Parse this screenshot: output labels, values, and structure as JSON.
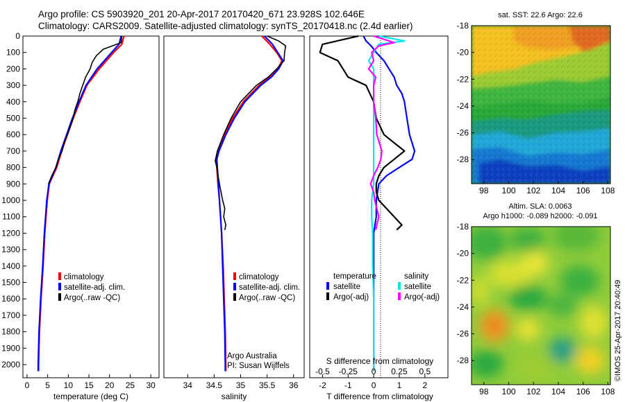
{
  "header": {
    "line1": "Argo profile: CS 5903920_201 20-Apr-2017 20170420_671 23.928S 102.646E",
    "line2": "Climatology: CARS2009. Satellite-adjusted climatology: synTS_20170418.nc (2.4d earlier)"
  },
  "colors": {
    "climatology": "#ff0000",
    "satellite": "#0000ff",
    "argo": "#000000",
    "sal_satellite": "#00e5ee",
    "sal_argo": "#ff00ff"
  },
  "chart_data": [
    {
      "type": "line",
      "id": "temperature",
      "xlabel": "temperature (deg C)",
      "xlim": [
        -1,
        32
      ],
      "ylim": [
        2080,
        0
      ],
      "xticks": [
        "0",
        "5",
        "10",
        "15",
        "20",
        "25",
        "30"
      ],
      "yticks": [
        "0",
        "100",
        "200",
        "300",
        "400",
        "500",
        "600",
        "700",
        "800",
        "900",
        "1000",
        "1100",
        "1200",
        "1300",
        "1400",
        "1500",
        "1600",
        "1700",
        "1800",
        "1900",
        "2000"
      ],
      "legend": [
        "climatology",
        "satellite-adj. clim.",
        "Argo(..raw -QC)"
      ],
      "series": [
        {
          "name": "climatology",
          "y": [
            0,
            50,
            100,
            200,
            300,
            400,
            500,
            600,
            700,
            800,
            900,
            1000,
            1200,
            1400,
            1600,
            1800,
            2000,
            2040
          ],
          "x": [
            23.5,
            23,
            21,
            17.5,
            14.5,
            12.8,
            11.2,
            9.8,
            8.4,
            7.2,
            5.4,
            4.9,
            4.3,
            3.9,
            3.4,
            3.0,
            2.8,
            2.8
          ]
        },
        {
          "name": "satellite-adj. clim.",
          "y": [
            0,
            50,
            100,
            200,
            300,
            400,
            500,
            600,
            700,
            800,
            900,
            1000,
            1200,
            1400,
            1600,
            1800,
            2000,
            2040
          ],
          "x": [
            22.8,
            22.3,
            20.5,
            17,
            14.3,
            12.6,
            11.0,
            9.6,
            8.2,
            7.0,
            5.3,
            4.8,
            4.2,
            3.8,
            3.3,
            2.9,
            2.7,
            2.7
          ]
        },
        {
          "name": "Argo(..raw -QC)",
          "y": [
            0,
            40,
            80,
            120,
            160,
            200,
            250,
            300,
            350,
            400,
            450,
            500,
            550,
            600,
            650,
            700,
            750,
            800,
            850,
            900
          ],
          "x": [
            23.0,
            22.8,
            18.5,
            16.8,
            15.8,
            15.3,
            14.2,
            13.5,
            12.8,
            12.3,
            11.6,
            11.2,
            10.5,
            9.8,
            9.0,
            8.5,
            7.6,
            7.0,
            6.0,
            5.2
          ]
        }
      ]
    },
    {
      "type": "line",
      "id": "salinity",
      "xlabel": "salinity",
      "xlim": [
        33.55,
        36.2
      ],
      "ylim": [
        2080,
        0
      ],
      "xticks": [
        "34",
        "34.5",
        "35",
        "35.5",
        "36"
      ],
      "legend": [
        "climatology",
        "satellite-adj. clim.",
        "Argo(..raw -QC)"
      ],
      "annotation": [
        "Argo Australia",
        "PI: Susan Wijffels"
      ],
      "series": [
        {
          "name": "climatology",
          "y": [
            0,
            50,
            100,
            150,
            200,
            250,
            300,
            400,
            500,
            600,
            700,
            750,
            800,
            900,
            1000,
            1100,
            1200,
            1400,
            1600,
            1800,
            2000,
            2040
          ],
          "x": [
            35.4,
            35.55,
            35.68,
            35.78,
            35.7,
            35.55,
            35.35,
            35.05,
            34.85,
            34.7,
            34.58,
            34.54,
            34.55,
            34.57,
            34.6,
            34.62,
            34.64,
            34.67,
            34.69,
            34.71,
            34.72,
            34.72
          ]
        },
        {
          "name": "satellite-adj. clim.",
          "y": [
            0,
            50,
            100,
            150,
            200,
            250,
            300,
            400,
            500,
            600,
            700,
            750,
            800,
            900,
            1000,
            1100,
            1200,
            1400,
            1600,
            1800,
            2000,
            2040
          ],
          "x": [
            35.45,
            35.6,
            35.7,
            35.8,
            35.72,
            35.58,
            35.38,
            35.08,
            34.88,
            34.72,
            34.59,
            34.55,
            34.56,
            34.58,
            34.6,
            34.62,
            34.64,
            34.66,
            34.68,
            34.7,
            34.71,
            34.71
          ]
        },
        {
          "name": "Argo(..raw -QC)",
          "y": [
            0,
            30,
            60,
            100,
            150,
            200,
            250,
            300,
            400,
            500,
            600,
            700,
            760,
            800,
            900,
            1000,
            1050,
            1100,
            1150,
            1180
          ],
          "x": [
            35.5,
            35.72,
            35.85,
            35.83,
            35.82,
            35.68,
            35.52,
            35.3,
            35.0,
            34.82,
            34.68,
            34.56,
            34.52,
            34.55,
            34.6,
            34.66,
            34.7,
            34.68,
            34.72,
            34.7
          ]
        }
      ]
    },
    {
      "type": "line",
      "id": "differences",
      "xlabel": "T difference from climatology",
      "xlabel_top": "S difference from climatology",
      "xlim": [
        -2.5,
        2.9
      ],
      "ylim": [
        2080,
        0
      ],
      "xticks": [
        "-2",
        "-1",
        "0",
        "1",
        "2"
      ],
      "xticks_top": [
        "-0.5",
        "-0.25",
        "0",
        "0.25",
        "0.5"
      ],
      "legend_left_title": "temperature",
      "legend_right_title": "salinity",
      "legend": [
        "satellite",
        "Argo(-adj)",
        "satellite",
        "Argo(-adj)"
      ],
      "series": [
        {
          "name": "satellite",
          "y": [
            0,
            30,
            60,
            100,
            150,
            200,
            250,
            300,
            350,
            400,
            500,
            600,
            700,
            750,
            800,
            850,
            900,
            1000,
            1100,
            1200,
            1500,
            2000,
            2040
          ],
          "x": [
            -0.4,
            -0.3,
            -0.1,
            0.1,
            0.4,
            0.6,
            0.8,
            0.9,
            1.1,
            1.2,
            1.3,
            1.4,
            1.6,
            1.5,
            1.0,
            0.5,
            0.2,
            0.1,
            0.1,
            0.0,
            0.0,
            0.0,
            0.0
          ]
        },
        {
          "name": "Argo(-adj)",
          "y": [
            0,
            50,
            100,
            150,
            200,
            250,
            300,
            400,
            500,
            600,
            650,
            700,
            750,
            800,
            850,
            900,
            950,
            1000,
            1050,
            1100,
            1150,
            1180
          ],
          "x": [
            -0.6,
            -2.0,
            -2.1,
            -1.4,
            -1.2,
            -1.0,
            -0.3,
            0.0,
            0.1,
            0.4,
            0.8,
            1.2,
            0.8,
            0.4,
            0.2,
            0.1,
            0.1,
            0.2,
            0.5,
            0.8,
            1.1,
            0.9
          ]
        },
        {
          "name": "satellite",
          "y": [
            0,
            30,
            50,
            100,
            150,
            200,
            300,
            400,
            500,
            700,
            900,
            1000,
            1100,
            1200,
            1400,
            1600,
            1800,
            2000,
            2040
          ],
          "x": [
            0.05,
            0.3,
            0.05,
            0.0,
            -0.05,
            0.0,
            0.0,
            0.0,
            0.0,
            0.0,
            0.0,
            -0.02,
            -0.02,
            -0.01,
            -0.01,
            0.0,
            0.0,
            0.0,
            0.0
          ]
        },
        {
          "name": "Argo(-adj)",
          "y": [
            0,
            20,
            40,
            60,
            100,
            150,
            200,
            250,
            300,
            400,
            500,
            600,
            700,
            750,
            800,
            850,
            900,
            950,
            1000,
            1050,
            1100,
            1150,
            1180
          ],
          "x": [
            0.0,
            0.1,
            0.2,
            0.05,
            -0.02,
            0.0,
            -0.05,
            0.02,
            0.0,
            0.0,
            0.02,
            0.03,
            0.08,
            0.07,
            0.04,
            0.0,
            -0.03,
            0.0,
            0.01,
            0.03,
            0.05,
            0.03,
            0.02
          ]
        }
      ]
    },
    {
      "type": "heatmap",
      "id": "sst_map",
      "title": "sat. SST: 22.6 Argo: 22.6",
      "xlim": [
        97,
        108.2
      ],
      "ylim": [
        -29.8,
        -18
      ],
      "xticks": [
        "98",
        "100",
        "102",
        "104",
        "106",
        "108"
      ],
      "yticks": [
        "-18",
        "-20",
        "-22",
        "-24",
        "-26",
        "-28"
      ]
    },
    {
      "type": "heatmap",
      "id": "sla_map",
      "title1": "Altim. SLA: 0.0063",
      "title2": "Argo h1000: -0.089 h2000: -0.091",
      "xlim": [
        97,
        108.2
      ],
      "ylim": [
        -29.8,
        -18
      ],
      "xticks": [
        "98",
        "100",
        "102",
        "104",
        "106",
        "108"
      ],
      "yticks": [
        "-18",
        "-20",
        "-22",
        "-24",
        "-26",
        "-28"
      ]
    }
  ],
  "footer": {
    "credit": "©IMOS 25-Apr-2017 20:40:49"
  }
}
